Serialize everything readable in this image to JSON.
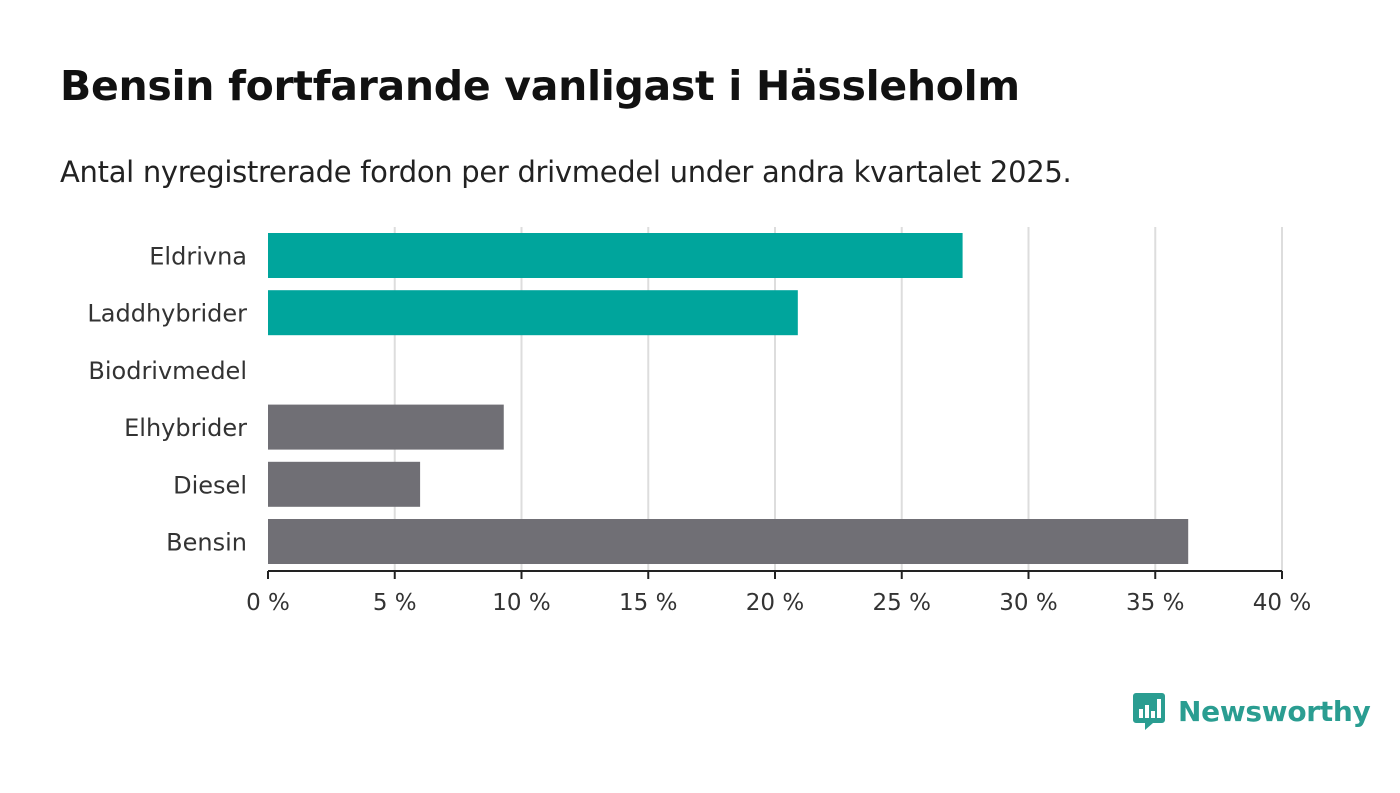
{
  "brand": {
    "name": "Newsworthy",
    "logo_icon": "bar-chart-speech-bubble-icon"
  },
  "colors": {
    "highlight": "#00a59c",
    "default": "#706f75",
    "grid": "#dddddd",
    "axis": "#222222",
    "brand": "#2a9d91"
  },
  "chart_data": {
    "type": "bar",
    "orientation": "horizontal",
    "title": "Bensin fortfarande vanligast i Hässleholm",
    "subtitle": "Antal nyregistrerade fordon per drivmedel under andra kvartalet 2025.",
    "categories": [
      "Eldrivna",
      "Laddhybrider",
      "Biodrivmedel",
      "Elhybrider",
      "Diesel",
      "Bensin"
    ],
    "values": [
      27.4,
      20.9,
      0,
      9.3,
      6.0,
      36.3
    ],
    "highlight": [
      true,
      true,
      true,
      false,
      false,
      false
    ],
    "xlim": [
      0,
      40
    ],
    "xticks": [
      0,
      5,
      10,
      15,
      20,
      25,
      30,
      35,
      40
    ],
    "tick_labels": [
      "0 %",
      "5 %",
      "10 %",
      "15 %",
      "20 %",
      "25 %",
      "30 %",
      "35 %",
      "40 %"
    ],
    "grid": true,
    "legend": "none"
  }
}
